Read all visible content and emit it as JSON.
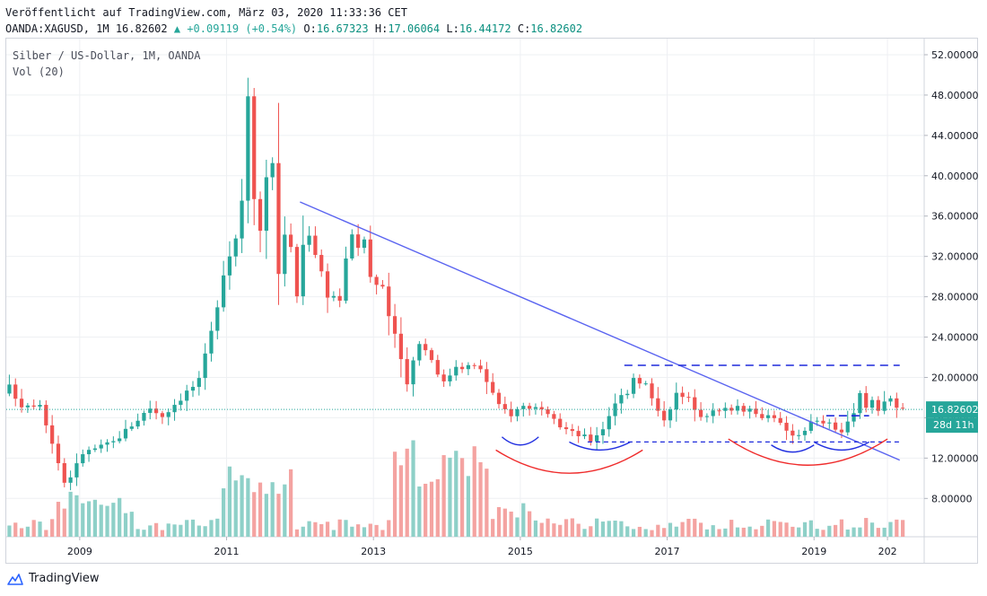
{
  "header": {
    "published": "Veröffentlicht auf TradingView.com, März 03, 2020 11:33:36 CET",
    "symbol": "OANDA:XAGUSD, 1M",
    "last": "16.82602",
    "change": "+0.09119 (+0.54%)",
    "o_label": "O:",
    "o_value": "16.67323",
    "h_label": "H:",
    "h_value": "17.06064",
    "l_label": "L:",
    "l_value": "16.44172",
    "c_label": "C:",
    "c_value": "16.82602"
  },
  "legend": {
    "series": "Silber / US-Dollar, 1M, OANDA",
    "volume": "Vol (20)"
  },
  "footer": {
    "brand": "TradingView"
  },
  "colors": {
    "up": "#26a69a",
    "down": "#ef5350",
    "vol_up": "#8ed0c8",
    "vol_down": "#f4a3a1",
    "trendline": "#5a64f0",
    "level": "#1e2adb",
    "arc_blue": "#2230e0",
    "arc_red": "#ef2b2b",
    "price_line": "#26a69a",
    "grid": "#eef0f3"
  },
  "chart_data": {
    "type": "candlestick",
    "title": "Silber / US-Dollar, 1M, OANDA",
    "xlabel": "",
    "ylabel": "",
    "x_ticks": [
      "2009",
      "2011",
      "2013",
      "2015",
      "2017",
      "2019",
      "202"
    ],
    "y_ticks": [
      "8.00000",
      "12.00000",
      "16.00000",
      "20.00000",
      "24.00000",
      "28.00000",
      "32.00000",
      "36.00000",
      "40.00000",
      "44.00000",
      "48.00000",
      "52.00000"
    ],
    "ylim": [
      4.2,
      53.6
    ],
    "xlim": [
      "2008-01",
      "2020-07"
    ],
    "grid": true,
    "last_price_label": "16.82602",
    "countdown_label": "28d 11h",
    "close_series": [
      {
        "t": "2008-01",
        "v": 19.0
      },
      {
        "t": "2008-03",
        "v": 17.3
      },
      {
        "t": "2008-06",
        "v": 17.5
      },
      {
        "t": "2008-08",
        "v": 13.5
      },
      {
        "t": "2008-10",
        "v": 9.6
      },
      {
        "t": "2008-11",
        "v": 10.2
      },
      {
        "t": "2009-01",
        "v": 12.5
      },
      {
        "t": "2009-06",
        "v": 13.6
      },
      {
        "t": "2009-12",
        "v": 17.0
      },
      {
        "t": "2010-02",
        "v": 16.2
      },
      {
        "t": "2010-06",
        "v": 18.6
      },
      {
        "t": "2010-08",
        "v": 19.6
      },
      {
        "t": "2010-10",
        "v": 24.4
      },
      {
        "t": "2010-12",
        "v": 30.6
      },
      {
        "t": "2011-02",
        "v": 34.0
      },
      {
        "t": "2011-03",
        "v": 37.9
      },
      {
        "t": "2011-04",
        "v": 48.6
      },
      {
        "t": "2011-05",
        "v": 38.4
      },
      {
        "t": "2011-06",
        "v": 34.6
      },
      {
        "t": "2011-07",
        "v": 40.0
      },
      {
        "t": "2011-08",
        "v": 41.8
      },
      {
        "t": "2011-09",
        "v": 29.9
      },
      {
        "t": "2011-10",
        "v": 34.6
      },
      {
        "t": "2011-11",
        "v": 32.5
      },
      {
        "t": "2011-12",
        "v": 28.2
      },
      {
        "t": "2012-01",
        "v": 33.1
      },
      {
        "t": "2012-02",
        "v": 34.6
      },
      {
        "t": "2012-03",
        "v": 32.5
      },
      {
        "t": "2012-05",
        "v": 28.4
      },
      {
        "t": "2012-07",
        "v": 27.8
      },
      {
        "t": "2012-08",
        "v": 31.4
      },
      {
        "t": "2012-09",
        "v": 34.6
      },
      {
        "t": "2012-10",
        "v": 32.3
      },
      {
        "t": "2012-11",
        "v": 33.8
      },
      {
        "t": "2012-12",
        "v": 30.0
      },
      {
        "t": "2013-02",
        "v": 28.5
      },
      {
        "t": "2013-04",
        "v": 23.9
      },
      {
        "t": "2013-06",
        "v": 19.7
      },
      {
        "t": "2013-08",
        "v": 23.6
      },
      {
        "t": "2013-10",
        "v": 21.9
      },
      {
        "t": "2013-12",
        "v": 19.4
      },
      {
        "t": "2014-02",
        "v": 21.3
      },
      {
        "t": "2014-06",
        "v": 20.9
      },
      {
        "t": "2014-09",
        "v": 17.1
      },
      {
        "t": "2014-11",
        "v": 16.4
      },
      {
        "t": "2015-01",
        "v": 17.2
      },
      {
        "t": "2015-03",
        "v": 17.0
      },
      {
        "t": "2015-06",
        "v": 15.6
      },
      {
        "t": "2015-09",
        "v": 14.5
      },
      {
        "t": "2015-11",
        "v": 14.1
      },
      {
        "t": "2015-12",
        "v": 13.8
      },
      {
        "t": "2016-02",
        "v": 15.0
      },
      {
        "t": "2016-04",
        "v": 17.6
      },
      {
        "t": "2016-06",
        "v": 18.7
      },
      {
        "t": "2016-07",
        "v": 20.1
      },
      {
        "t": "2016-09",
        "v": 19.3
      },
      {
        "t": "2016-11",
        "v": 16.5
      },
      {
        "t": "2016-12",
        "v": 16.0
      },
      {
        "t": "2017-02",
        "v": 18.3
      },
      {
        "t": "2017-04",
        "v": 17.8
      },
      {
        "t": "2017-06",
        "v": 16.4
      },
      {
        "t": "2017-09",
        "v": 16.6
      },
      {
        "t": "2017-12",
        "v": 17.2
      },
      {
        "t": "2018-03",
        "v": 16.3
      },
      {
        "t": "2018-06",
        "v": 16.2
      },
      {
        "t": "2018-08",
        "v": 14.5
      },
      {
        "t": "2018-10",
        "v": 14.4
      },
      {
        "t": "2018-12",
        "v": 15.5
      },
      {
        "t": "2019-02",
        "v": 15.6
      },
      {
        "t": "2019-04",
        "v": 15.0
      },
      {
        "t": "2019-05",
        "v": 14.6
      },
      {
        "t": "2019-07",
        "v": 16.3
      },
      {
        "t": "2019-08",
        "v": 18.3
      },
      {
        "t": "2019-09",
        "v": 17.0
      },
      {
        "t": "2019-10",
        "v": 17.8
      },
      {
        "t": "2019-11",
        "v": 16.9
      },
      {
        "t": "2019-12",
        "v": 17.9
      },
      {
        "t": "2020-01",
        "v": 18.0
      },
      {
        "t": "2020-02",
        "v": 16.7
      },
      {
        "t": "2020-03",
        "v": 16.83
      }
    ],
    "annotations": {
      "trendline": {
        "from": {
          "t": "2012-01",
          "v": 37.4
        },
        "to": {
          "t": "2020-03",
          "v": 11.8
        }
      },
      "resistance_level": {
        "v": 21.2,
        "from": "2016-06",
        "to": "2020-03"
      },
      "neckline_level": {
        "v": 16.2,
        "from": "2019-03",
        "to": "2019-10"
      },
      "support_level": {
        "v": 13.6,
        "from": "2015-12",
        "to": "2020-03"
      },
      "arcs_blue": [
        [
          "2014-10",
          "2015-04",
          14.1,
          13.3
        ],
        [
          "2015-09",
          "2016-07",
          13.6,
          12.8
        ],
        [
          "2018-06",
          "2019-01",
          13.3,
          12.6
        ],
        [
          "2019-01",
          "2019-10",
          13.6,
          12.8
        ]
      ],
      "arcs_red": [
        [
          "2014-09",
          "2016-09",
          12.8,
          10.5
        ],
        [
          "2017-11",
          "2020-01",
          13.9,
          11.3
        ]
      ]
    }
  }
}
